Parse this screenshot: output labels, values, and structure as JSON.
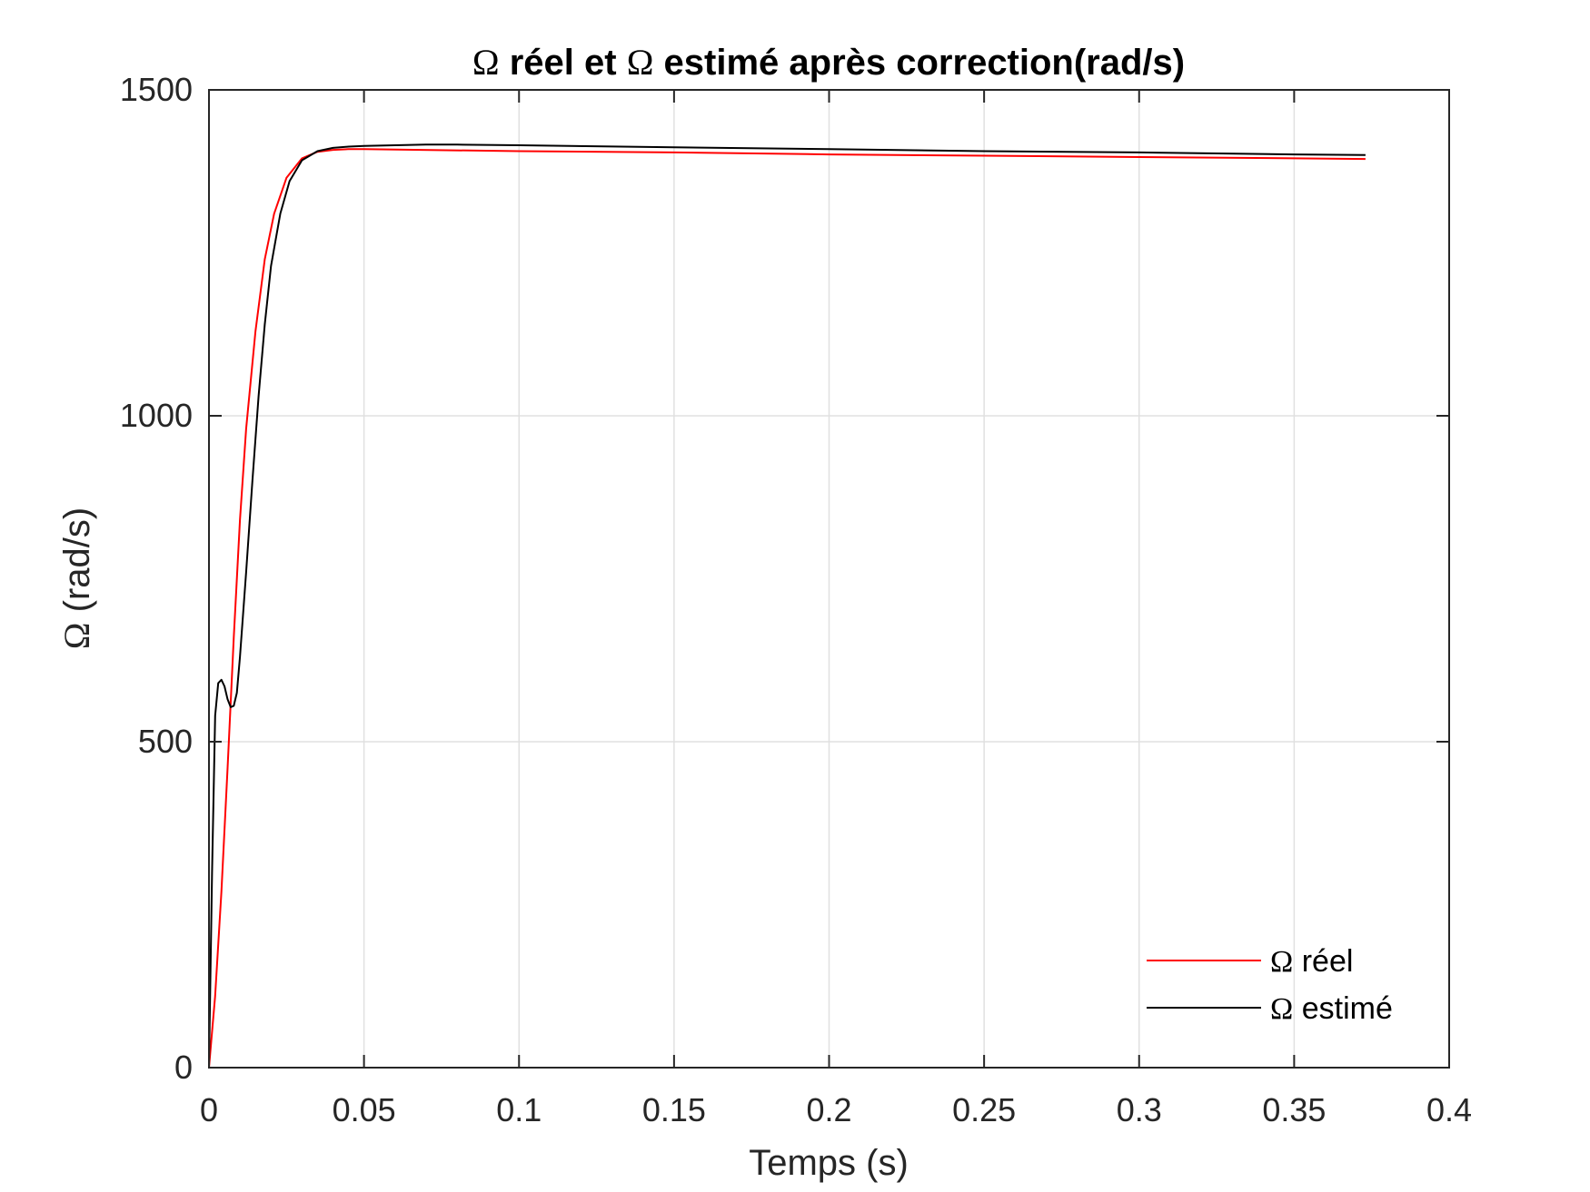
{
  "chart_data": {
    "type": "line",
    "title_omega": "Ω",
    "title_part1": " réel et ",
    "title_omega2": "Ω",
    "title_part2": " estimé après correction(rad/s)",
    "xlabel": "Temps (s)",
    "ylabel_omega": "Ω",
    "ylabel_rest": " (rad/s)",
    "xlim": [
      0,
      0.4
    ],
    "ylim": [
      0,
      1500
    ],
    "xticks": [
      0,
      0.05,
      0.1,
      0.15,
      0.2,
      0.25,
      0.3,
      0.35,
      0.4
    ],
    "xtick_labels": [
      "0",
      "0.05",
      "0.1",
      "0.15",
      "0.2",
      "0.25",
      "0.3",
      "0.35",
      "0.4"
    ],
    "yticks": [
      0,
      500,
      1000,
      1500
    ],
    "ytick_labels": [
      "0",
      "500",
      "1000",
      "1500"
    ],
    "grid": true,
    "legend_position": "bottom-right",
    "series": [
      {
        "legend_omega": "Ω",
        "legend_rest": " réel",
        "color": "#ff0000",
        "x": [
          0,
          0.002,
          0.004,
          0.006,
          0.008,
          0.01,
          0.012,
          0.015,
          0.018,
          0.021,
          0.025,
          0.03,
          0.035,
          0.04,
          0.045,
          0.05,
          0.1,
          0.15,
          0.2,
          0.25,
          0.3,
          0.35,
          0.373
        ],
        "y": [
          0,
          110,
          270,
          460,
          660,
          840,
          980,
          1130,
          1240,
          1310,
          1365,
          1395,
          1405,
          1408,
          1409,
          1409,
          1406,
          1404,
          1401,
          1399,
          1397,
          1395,
          1394
        ]
      },
      {
        "legend_omega": "Ω",
        "legend_rest": " estimé",
        "color": "#000000",
        "x": [
          0,
          0.001,
          0.002,
          0.003,
          0.004,
          0.005,
          0.006,
          0.007,
          0.008,
          0.009,
          0.01,
          0.012,
          0.014,
          0.016,
          0.018,
          0.02,
          0.023,
          0.026,
          0.03,
          0.035,
          0.04,
          0.045,
          0.05,
          0.06,
          0.07,
          0.08,
          0.1,
          0.15,
          0.2,
          0.25,
          0.3,
          0.35,
          0.373
        ],
        "y": [
          0,
          300,
          540,
          590,
          595,
          585,
          565,
          553,
          555,
          575,
          630,
          760,
          900,
          1030,
          1140,
          1230,
          1310,
          1360,
          1392,
          1406,
          1411,
          1413,
          1414,
          1415,
          1416,
          1416,
          1415,
          1412,
          1409,
          1406,
          1404,
          1401,
          1400
        ]
      }
    ]
  }
}
